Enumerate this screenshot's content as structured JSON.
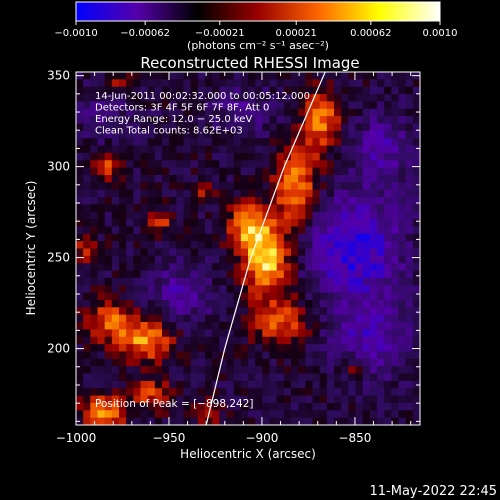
{
  "chart_data": {
    "type": "heatmap",
    "title": "Reconstructed RHESSI Image",
    "xlabel": "Heliocentric X (arcsec)",
    "ylabel": "Heliocentric Y (arcsec)",
    "xlim": [
      -1000,
      -815
    ],
    "ylim": [
      158,
      352
    ],
    "x_ticks": [
      -1000,
      -950,
      -900,
      -850
    ],
    "y_ticks": [
      200,
      250,
      300,
      350
    ],
    "colorbar": {
      "range": [
        -0.001,
        0.001
      ],
      "ticks": [
        "−0.0010",
        "−0.00062",
        "−0.00021",
        "0.00021",
        "0.00062",
        "0.0010"
      ],
      "tick_values": [
        -0.001,
        -0.00062,
        -0.00021,
        0.00021,
        0.00062,
        0.001
      ],
      "unit_label": "(photons cm⁻² s⁻¹ asec⁻²)",
      "colors": [
        "#0000ff",
        "#5500aa",
        "#000000",
        "#990000",
        "#ff6600",
        "#ffff00",
        "#ffffff"
      ]
    },
    "info_lines": [
      "14‑Jun‑2011 00:02:32.000 to 00:05:12.000",
      "Detectors: 3F 4F 5F 6F 7F 8F, Att 0",
      "Energy Range: 12.0 − 25.0 keV",
      "Clean     Total counts: 8.62E+03"
    ],
    "peak_label": "Position of Peak = [−898,242]",
    "peak": {
      "x": -898,
      "y": 242
    },
    "bright_sources": [
      {
        "x": -898,
        "y": 250,
        "value": 0.001,
        "sx": 9,
        "sy": 14
      },
      {
        "x": -882,
        "y": 290,
        "value": 0.0008,
        "sx": 8,
        "sy": 14
      },
      {
        "x": -908,
        "y": 268,
        "value": 0.0007,
        "sx": 7,
        "sy": 8
      },
      {
        "x": -868,
        "y": 325,
        "value": 0.0007,
        "sx": 7,
        "sy": 12
      },
      {
        "x": -890,
        "y": 215,
        "value": 0.0006,
        "sx": 10,
        "sy": 9
      },
      {
        "x": -962,
        "y": 205,
        "value": 0.0008,
        "sx": 10,
        "sy": 8
      },
      {
        "x": -982,
        "y": 215,
        "value": 0.0006,
        "sx": 8,
        "sy": 8
      },
      {
        "x": -985,
        "y": 165,
        "value": 0.0008,
        "sx": 8,
        "sy": 6
      },
      {
        "x": -960,
        "y": 175,
        "value": 0.0005,
        "sx": 8,
        "sy": 6
      },
      {
        "x": -985,
        "y": 300,
        "value": 0.0006,
        "sx": 5,
        "sy": 5
      },
      {
        "x": -955,
        "y": 270,
        "value": 0.0005,
        "sx": 5,
        "sy": 5
      },
      {
        "x": -932,
        "y": 285,
        "value": 0.0004,
        "sx": 4,
        "sy": 4
      },
      {
        "x": -995,
        "y": 255,
        "value": 0.0004,
        "sx": 5,
        "sy": 5
      },
      {
        "x": -975,
        "y": 345,
        "value": 0.0004,
        "sx": 6,
        "sy": 4
      },
      {
        "x": -850,
        "y": 190,
        "value": 0.0004,
        "sx": 5,
        "sy": 5
      },
      {
        "x": -930,
        "y": 165,
        "value": 0.0004,
        "sx": 5,
        "sy": 5
      }
    ],
    "negative_regions": [
      {
        "x": -850,
        "y": 255,
        "value": -0.0007,
        "sx": 18,
        "sy": 20
      },
      {
        "x": -840,
        "y": 205,
        "value": -0.0005,
        "sx": 15,
        "sy": 15
      },
      {
        "x": -835,
        "y": 310,
        "value": -0.0004,
        "sx": 12,
        "sy": 14
      },
      {
        "x": -945,
        "y": 230,
        "value": -0.0004,
        "sx": 12,
        "sy": 12
      },
      {
        "x": -985,
        "y": 330,
        "value": -0.0003,
        "sx": 10,
        "sy": 10
      },
      {
        "x": -910,
        "y": 330,
        "value": -0.0003,
        "sx": 12,
        "sy": 10
      }
    ],
    "limb_curve": [
      [
        -930,
        158
      ],
      [
        -920,
        200
      ],
      [
        -906,
        250
      ],
      [
        -888,
        300
      ],
      [
        -866,
        352
      ]
    ],
    "grid": false
  },
  "timestamp": "11‑May‑2022 22:45"
}
